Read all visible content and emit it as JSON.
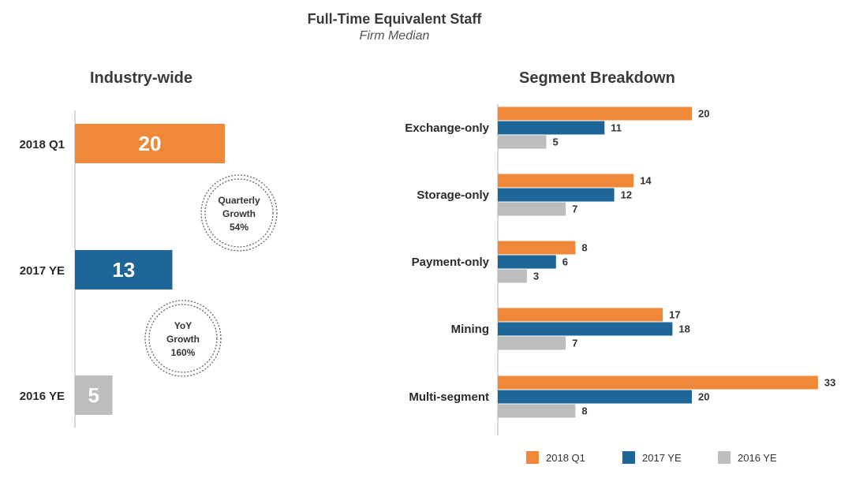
{
  "header": {
    "title": "Full-Time Equivalent Staff",
    "subtitle": "Firm Median"
  },
  "colors": {
    "2018 Q1": "#F0883A",
    "2017 YE": "#1F6698",
    "2016 YE": "#BDBDBD"
  },
  "chart_data": [
    {
      "type": "bar",
      "orientation": "horizontal",
      "title": "Industry-wide",
      "categories": [
        "2018 Q1",
        "2017 YE",
        "2016 YE"
      ],
      "values": [
        20,
        13,
        5
      ],
      "annotations": [
        {
          "lines": [
            "Quarterly",
            "Growth",
            "54%"
          ]
        },
        {
          "lines": [
            "YoY",
            "Growth",
            "160%"
          ]
        }
      ]
    },
    {
      "type": "bar",
      "orientation": "horizontal",
      "title": "Segment Breakdown",
      "categories": [
        "Exchange-only",
        "Storage-only",
        "Payment-only",
        "Mining",
        "Multi-segment"
      ],
      "series": [
        {
          "name": "2018 Q1",
          "values": [
            20,
            14,
            8,
            17,
            33
          ]
        },
        {
          "name": "2017 YE",
          "values": [
            11,
            12,
            6,
            18,
            20
          ]
        },
        {
          "name": "2016 YE",
          "values": [
            5,
            7,
            3,
            7,
            8
          ]
        }
      ],
      "legend": "bottom"
    }
  ]
}
